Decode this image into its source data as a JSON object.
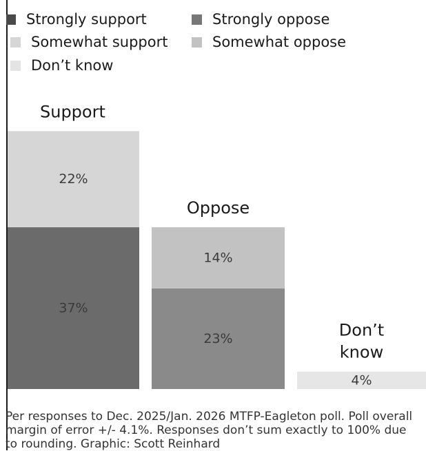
{
  "legend": [
    {
      "label": "Strongly support",
      "color": "#4a4a4a"
    },
    {
      "label": "Strongly oppose",
      "color": "#777777"
    },
    {
      "label": "Somewhat support",
      "color": "#d6d6d6"
    },
    {
      "label": "Somewhat oppose",
      "color": "#c2c2c2"
    },
    {
      "label": "Don’t know",
      "color": "#e4e4e4"
    }
  ],
  "chart_data": {
    "type": "bar",
    "stacked": true,
    "categories": [
      "Support",
      "Oppose",
      "Don’t know"
    ],
    "category_titles": [
      [
        "Support"
      ],
      [
        "Oppose"
      ],
      [
        "Don’t",
        "know"
      ]
    ],
    "series": [
      {
        "name": "Strongly support",
        "values": [
          37,
          0,
          0
        ],
        "color": "#6b6b6b"
      },
      {
        "name": "Somewhat support",
        "values": [
          22,
          0,
          0
        ],
        "color": "#d6d6d6"
      },
      {
        "name": "Strongly oppose",
        "values": [
          0,
          23,
          0
        ],
        "color": "#8a8a8a"
      },
      {
        "name": "Somewhat oppose",
        "values": [
          0,
          14,
          0
        ],
        "color": "#c2c2c2"
      },
      {
        "name": "Don’t know",
        "values": [
          0,
          0,
          4
        ],
        "color": "#e6e6e6"
      }
    ],
    "value_suffix": "%",
    "ylim": [
      0,
      59
    ]
  },
  "footnote": "Per responses to Dec. 2025/Jan. 2026 MTFP-Eagleton poll. Poll overall margin of error +/- 4.1%. Responses don’t sum exactly to 100% due to rounding. Graphic: Scott Reinhard"
}
